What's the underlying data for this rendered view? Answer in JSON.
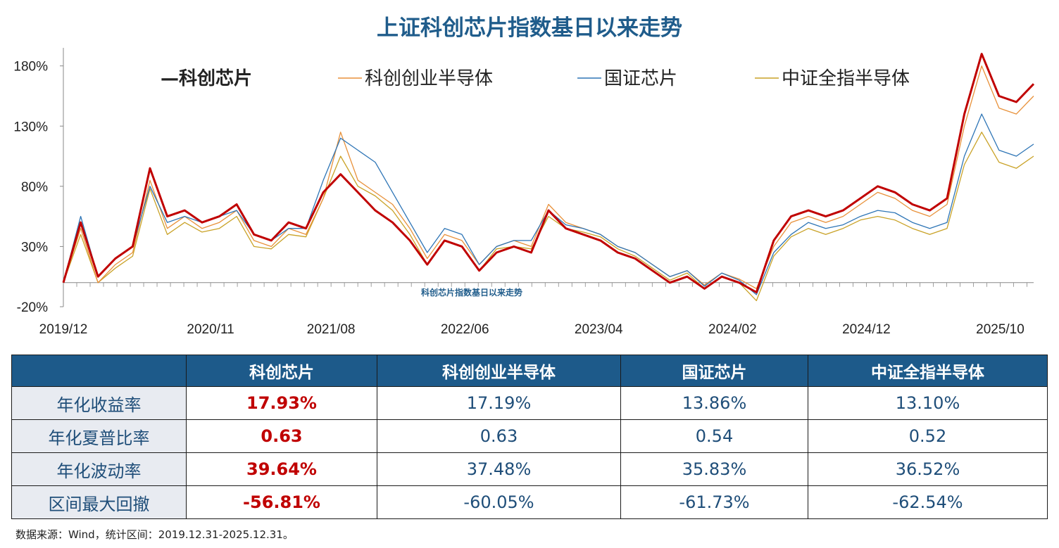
{
  "title": "上证科创芯片指数基日以来走势",
  "watermark": "科创芯片指数基日以来走势",
  "colors": {
    "kcxp": "#c00000",
    "kccy": "#e8913a",
    "gzxp": "#2e75b6",
    "zzqz": "#c9a227",
    "header_bg": "#1d5a8a",
    "title": "#1f5c8b"
  },
  "chart_data": {
    "type": "line",
    "ylim": [
      -20,
      195
    ],
    "yticks": [
      180,
      130,
      80,
      30,
      -20
    ],
    "ytick_labels": [
      "180%",
      "130%",
      "80%",
      "30%",
      "-20%"
    ],
    "xticks": [
      0,
      11,
      20,
      30,
      40,
      50,
      60,
      70
    ],
    "xtick_labels": [
      "2019/12",
      "2020/11",
      "2021/08",
      "2022/06",
      "2023/04",
      "2024/02",
      "2024/12",
      "2025/10"
    ],
    "xrange": [
      0,
      72.5
    ],
    "series": [
      {
        "name": "科创芯片",
        "key": "kcxp",
        "values": [
          0,
          50,
          5,
          20,
          30,
          95,
          55,
          60,
          50,
          55,
          65,
          40,
          35,
          50,
          45,
          75,
          90,
          75,
          60,
          50,
          35,
          15,
          35,
          30,
          10,
          25,
          30,
          25,
          60,
          45,
          40,
          35,
          25,
          20,
          10,
          0,
          5,
          -5,
          5,
          0,
          -8,
          35,
          55,
          60,
          55,
          60,
          70,
          80,
          75,
          65,
          60,
          70,
          140,
          190,
          155,
          150,
          165
        ]
      },
      {
        "name": "科创创业半导体",
        "key": "kccy",
        "values": [
          0,
          45,
          0,
          15,
          25,
          85,
          45,
          55,
          45,
          50,
          60,
          35,
          30,
          45,
          40,
          70,
          125,
          85,
          75,
          65,
          45,
          20,
          40,
          35,
          15,
          30,
          35,
          30,
          65,
          50,
          45,
          40,
          30,
          25,
          15,
          5,
          10,
          -2,
          8,
          3,
          -5,
          30,
          50,
          55,
          50,
          55,
          65,
          75,
          70,
          60,
          55,
          65,
          130,
          180,
          145,
          140,
          155
        ]
      },
      {
        "name": "国证芯片",
        "key": "kzxp_dummy",
        "values": []
      },
      {
        "name": "国证芯片",
        "key": "gzxp",
        "values": [
          0,
          55,
          5,
          20,
          30,
          80,
          50,
          55,
          50,
          55,
          60,
          40,
          35,
          45,
          45,
          85,
          120,
          110,
          100,
          75,
          50,
          25,
          45,
          40,
          15,
          30,
          35,
          35,
          60,
          48,
          45,
          40,
          30,
          25,
          15,
          5,
          10,
          -3,
          8,
          2,
          -10,
          25,
          40,
          50,
          45,
          48,
          55,
          60,
          58,
          50,
          45,
          50,
          105,
          140,
          110,
          105,
          115
        ]
      },
      {
        "name": "中证全指半导体",
        "key": "zzqz",
        "values": [
          0,
          40,
          0,
          12,
          22,
          78,
          40,
          50,
          42,
          45,
          55,
          30,
          28,
          40,
          38,
          70,
          105,
          80,
          72,
          60,
          40,
          15,
          35,
          30,
          10,
          28,
          30,
          28,
          55,
          45,
          42,
          38,
          28,
          22,
          12,
          2,
          8,
          -5,
          5,
          0,
          -15,
          22,
          38,
          45,
          40,
          45,
          52,
          55,
          52,
          45,
          40,
          45,
          98,
          125,
          100,
          95,
          105
        ]
      }
    ]
  },
  "legend": [
    "—科创芯片",
    "科创创业半导体",
    "国证芯片",
    "中证全指半导体"
  ],
  "table": {
    "headers": [
      "",
      "科创芯片",
      "科创创业半导体",
      "国证芯片",
      "中证全指半导体"
    ],
    "rows": [
      {
        "label": "年化收益率",
        "values": [
          "17.93%",
          "17.19%",
          "13.86%",
          "13.10%"
        ]
      },
      {
        "label": "年化夏普比率",
        "values": [
          "0.63",
          "0.63",
          "0.54",
          "0.52"
        ]
      },
      {
        "label": "年化波动率",
        "values": [
          "39.64%",
          "37.48%",
          "35.83%",
          "36.52%"
        ]
      },
      {
        "label": "区间最大回撤",
        "values": [
          "-56.81%",
          "-60.05%",
          "-61.73%",
          "-62.54%"
        ]
      }
    ]
  },
  "source": "数据来源：Wind，统计区间：2019.12.31-2025.12.31。"
}
